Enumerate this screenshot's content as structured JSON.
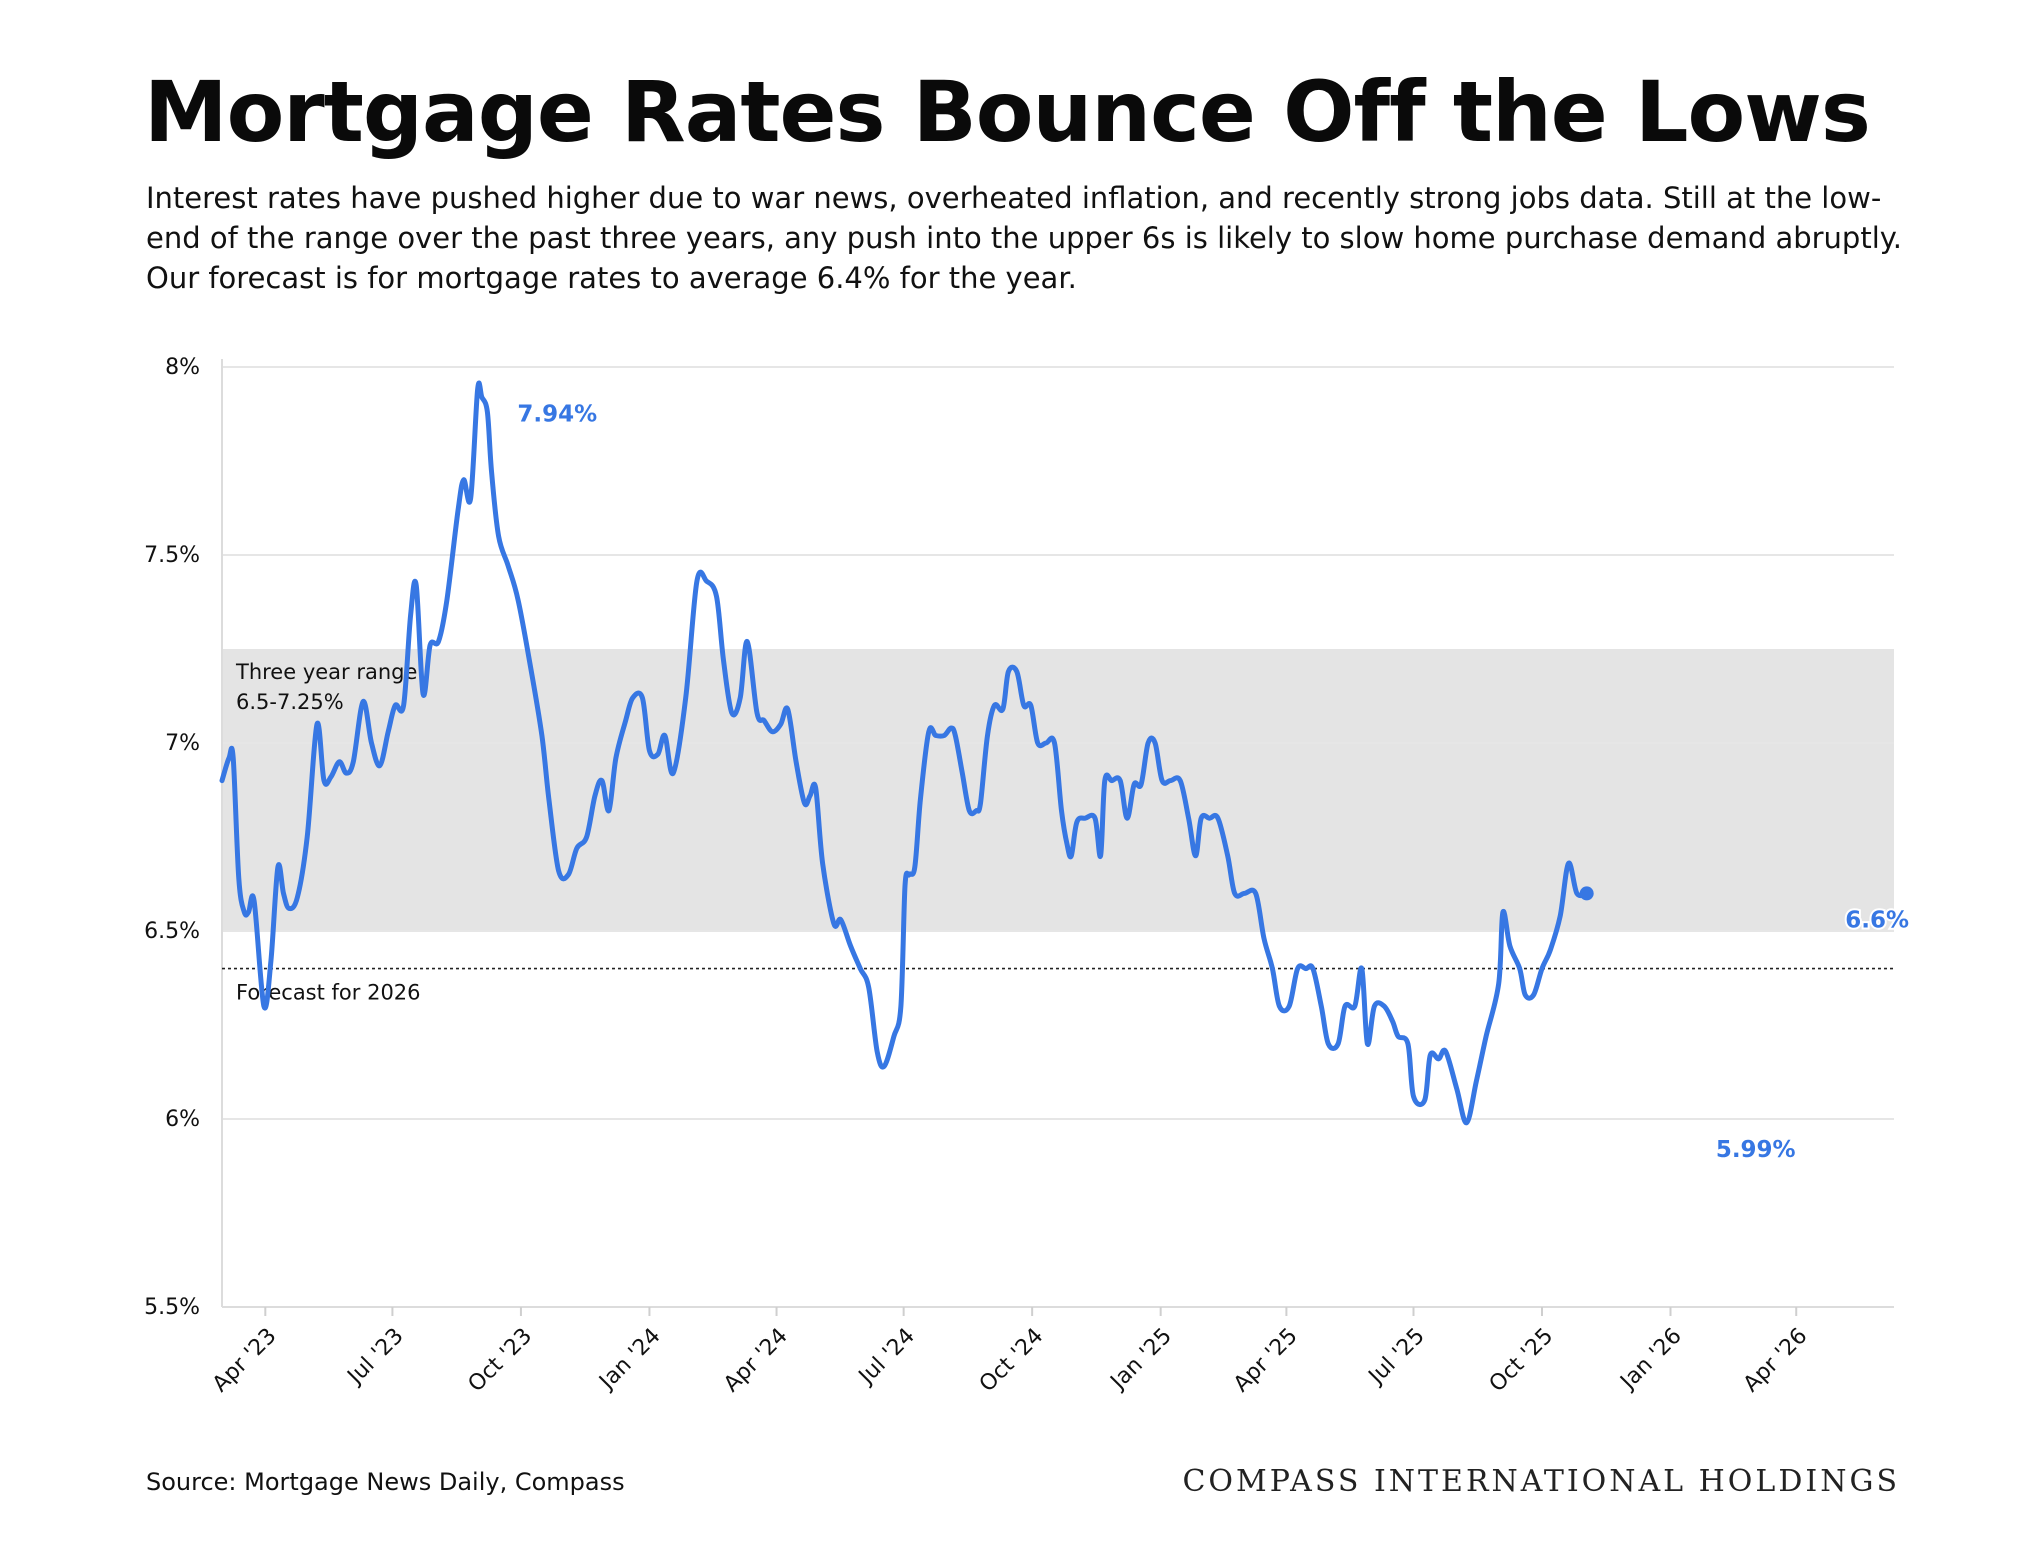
{
  "header": {
    "title": "Mortgage Rates Bounce Off the Lows",
    "subtitle": "Interest rates have pushed higher due to war news, overheated inflation, and recently strong jobs data. Still at the low-end of the range over the past three years, any push into the upper 6s is likely to slow home purchase demand abruptly. Our forecast is for mortgage rates to average 6.4% for the year."
  },
  "footer": {
    "source": "Source: Mortgage News Daily, Compass",
    "brand": "COMPASS INTERNATIONAL HOLDINGS"
  },
  "chart_data": {
    "type": "line",
    "ylim": [
      5.5,
      8.0
    ],
    "y_ticks": [
      5.5,
      6.0,
      6.5,
      7.0,
      7.5,
      8.0
    ],
    "y_tick_labels": [
      "5.5%",
      "6%",
      "6.5%",
      "7%",
      "7.5%",
      "8%"
    ],
    "x_range": [
      "2023-03-01",
      "2026-06-10"
    ],
    "x_ticks": [
      "2023-04-01",
      "2023-07-01",
      "2023-10-01",
      "2024-01-01",
      "2024-04-01",
      "2024-07-01",
      "2024-10-01",
      "2025-01-01",
      "2025-04-01",
      "2025-07-01",
      "2025-10-01",
      "2026-01-01",
      "2026-04-01"
    ],
    "x_tick_labels": [
      "Apr '23",
      "Jul '23",
      "Oct '23",
      "Jan '24",
      "Apr '24",
      "Jul '24",
      "Oct '24",
      "Jan '25",
      "Apr '25",
      "Jul '25",
      "Oct '25",
      "Jan '26",
      "Apr '26"
    ],
    "grid": true,
    "line_color": "#3777e3",
    "band": {
      "from": 6.5,
      "to": 7.25,
      "color": "#e4e4e4",
      "label_line1": "Three year range",
      "label_line2": "6.5-7.25%"
    },
    "reference_line": {
      "y": 6.4,
      "label": "Forecast for 2026"
    },
    "annotations": [
      {
        "label": "7.94%",
        "x": "2023-10-27",
        "y": 7.94
      },
      {
        "label": "5.99%",
        "x": "2026-03-03",
        "y": 5.99
      },
      {
        "label": "6.6%",
        "x": "2026-06-08",
        "y": 6.6
      }
    ],
    "series": [
      {
        "points": [
          [
            "2023-03-01",
            6.9
          ],
          [
            "2023-03-06",
            6.96
          ],
          [
            "2023-03-09",
            6.96
          ],
          [
            "2023-03-13",
            6.64
          ],
          [
            "2023-03-17",
            6.55
          ],
          [
            "2023-03-20",
            6.55
          ],
          [
            "2023-03-24",
            6.58
          ],
          [
            "2023-03-31",
            6.3
          ],
          [
            "2023-04-05",
            6.42
          ],
          [
            "2023-04-10",
            6.67
          ],
          [
            "2023-04-14",
            6.6
          ],
          [
            "2023-04-18",
            6.56
          ],
          [
            "2023-04-24",
            6.59
          ],
          [
            "2023-05-01",
            6.75
          ],
          [
            "2023-05-08",
            7.05
          ],
          [
            "2023-05-13",
            6.9
          ],
          [
            "2023-05-18",
            6.91
          ],
          [
            "2023-05-24",
            6.95
          ],
          [
            "2023-05-29",
            6.92
          ],
          [
            "2023-06-03",
            6.95
          ],
          [
            "2023-06-10",
            7.11
          ],
          [
            "2023-06-16",
            7.0
          ],
          [
            "2023-06-22",
            6.94
          ],
          [
            "2023-06-28",
            7.03
          ],
          [
            "2023-07-03",
            7.1
          ],
          [
            "2023-07-09",
            7.1
          ],
          [
            "2023-07-14",
            7.34
          ],
          [
            "2023-07-18",
            7.42
          ],
          [
            "2023-07-23",
            7.13
          ],
          [
            "2023-07-28",
            7.26
          ],
          [
            "2023-08-03",
            7.27
          ],
          [
            "2023-08-09",
            7.38
          ],
          [
            "2023-08-17",
            7.62
          ],
          [
            "2023-08-21",
            7.7
          ],
          [
            "2023-08-26",
            7.65
          ],
          [
            "2023-08-31",
            7.94
          ],
          [
            "2023-09-03",
            7.92
          ],
          [
            "2023-09-07",
            7.88
          ],
          [
            "2023-09-10",
            7.72
          ],
          [
            "2023-09-15",
            7.55
          ],
          [
            "2023-09-22",
            7.47
          ],
          [
            "2023-09-29",
            7.38
          ],
          [
            "2023-10-08",
            7.2
          ],
          [
            "2023-10-16",
            7.02
          ],
          [
            "2023-10-21",
            6.85
          ],
          [
            "2023-10-28",
            6.66
          ],
          [
            "2023-11-04",
            6.65
          ],
          [
            "2023-11-10",
            6.72
          ],
          [
            "2023-11-17",
            6.75
          ],
          [
            "2023-11-23",
            6.86
          ],
          [
            "2023-11-28",
            6.9
          ],
          [
            "2023-12-03",
            6.82
          ],
          [
            "2023-12-08",
            6.96
          ],
          [
            "2023-12-15",
            7.06
          ],
          [
            "2023-12-20",
            7.12
          ],
          [
            "2023-12-27",
            7.12
          ],
          [
            "2024-01-01",
            6.98
          ],
          [
            "2024-01-07",
            6.97
          ],
          [
            "2024-01-12",
            7.02
          ],
          [
            "2024-01-18",
            6.92
          ],
          [
            "2024-01-27",
            7.12
          ],
          [
            "2024-02-04",
            7.43
          ],
          [
            "2024-02-11",
            7.43
          ],
          [
            "2024-02-18",
            7.39
          ],
          [
            "2024-02-23",
            7.22
          ],
          [
            "2024-02-29",
            7.08
          ],
          [
            "2024-03-06",
            7.12
          ],
          [
            "2024-03-11",
            7.27
          ],
          [
            "2024-03-18",
            7.08
          ],
          [
            "2024-03-23",
            7.06
          ],
          [
            "2024-03-29",
            7.03
          ],
          [
            "2024-04-04",
            7.05
          ],
          [
            "2024-04-09",
            7.09
          ],
          [
            "2024-04-15",
            6.95
          ],
          [
            "2024-04-21",
            6.84
          ],
          [
            "2024-04-25",
            6.86
          ],
          [
            "2024-04-29",
            6.88
          ],
          [
            "2024-05-04",
            6.68
          ],
          [
            "2024-05-12",
            6.52
          ],
          [
            "2024-05-17",
            6.53
          ],
          [
            "2024-05-24",
            6.46
          ],
          [
            "2024-05-31",
            6.4
          ],
          [
            "2024-06-06",
            6.35
          ],
          [
            "2024-06-12",
            6.18
          ],
          [
            "2024-06-17",
            6.14
          ],
          [
            "2024-06-24",
            6.22
          ],
          [
            "2024-06-29",
            6.3
          ],
          [
            "2024-07-02",
            6.62
          ],
          [
            "2024-07-05",
            6.65
          ],
          [
            "2024-07-09",
            6.67
          ],
          [
            "2024-07-13",
            6.85
          ],
          [
            "2024-07-19",
            7.03
          ],
          [
            "2024-07-24",
            7.02
          ],
          [
            "2024-07-30",
            7.02
          ],
          [
            "2024-08-04",
            7.04
          ],
          [
            "2024-08-07",
            7.02
          ],
          [
            "2024-08-12",
            6.92
          ],
          [
            "2024-08-17",
            6.82
          ],
          [
            "2024-08-22",
            6.82
          ],
          [
            "2024-08-25",
            6.84
          ],
          [
            "2024-08-30",
            7.02
          ],
          [
            "2024-09-04",
            7.1
          ],
          [
            "2024-09-10",
            7.09
          ],
          [
            "2024-09-14",
            7.19
          ],
          [
            "2024-09-20",
            7.19
          ],
          [
            "2024-09-25",
            7.1
          ],
          [
            "2024-09-30",
            7.1
          ],
          [
            "2024-10-05",
            7.0
          ],
          [
            "2024-10-11",
            7.0
          ],
          [
            "2024-10-17",
            7.0
          ],
          [
            "2024-10-22",
            6.82
          ],
          [
            "2024-10-26",
            6.73
          ],
          [
            "2024-10-29",
            6.7
          ],
          [
            "2024-11-02",
            6.79
          ],
          [
            "2024-11-08",
            6.8
          ],
          [
            "2024-11-15",
            6.8
          ],
          [
            "2024-11-19",
            6.7
          ],
          [
            "2024-11-22",
            6.9
          ],
          [
            "2024-11-27",
            6.9
          ],
          [
            "2024-12-03",
            6.9
          ],
          [
            "2024-12-08",
            6.8
          ],
          [
            "2024-12-13",
            6.89
          ],
          [
            "2024-12-18",
            6.89
          ],
          [
            "2024-12-23",
            7.0
          ],
          [
            "2024-12-28",
            7.0
          ],
          [
            "2025-01-02",
            6.9
          ],
          [
            "2025-01-08",
            6.9
          ],
          [
            "2025-01-15",
            6.9
          ],
          [
            "2025-01-21",
            6.8
          ],
          [
            "2025-01-26",
            6.7
          ],
          [
            "2025-01-30",
            6.8
          ],
          [
            "2025-02-05",
            6.8
          ],
          [
            "2025-02-11",
            6.8
          ],
          [
            "2025-02-18",
            6.7
          ],
          [
            "2025-02-23",
            6.6
          ],
          [
            "2025-03-02",
            6.6
          ],
          [
            "2025-03-10",
            6.6
          ],
          [
            "2025-03-16",
            6.48
          ],
          [
            "2025-03-22",
            6.4
          ],
          [
            "2025-03-27",
            6.3
          ],
          [
            "2025-04-03",
            6.3
          ],
          [
            "2025-04-09",
            6.4
          ],
          [
            "2025-04-15",
            6.4
          ],
          [
            "2025-04-20",
            6.4
          ],
          [
            "2025-04-26",
            6.3
          ],
          [
            "2025-05-01",
            6.2
          ],
          [
            "2025-05-08",
            6.2
          ],
          [
            "2025-05-13",
            6.3
          ],
          [
            "2025-05-20",
            6.3
          ],
          [
            "2025-05-25",
            6.4
          ],
          [
            "2025-05-29",
            6.2
          ],
          [
            "2025-06-03",
            6.3
          ],
          [
            "2025-06-10",
            6.3
          ],
          [
            "2025-06-16",
            6.26
          ],
          [
            "2025-06-20",
            6.22
          ],
          [
            "2025-06-27",
            6.2
          ],
          [
            "2025-07-01",
            6.06
          ],
          [
            "2025-07-09",
            6.05
          ],
          [
            "2025-07-13",
            6.17
          ],
          [
            "2025-07-19",
            6.16
          ],
          [
            "2025-07-24",
            6.18
          ],
          [
            "2025-08-01",
            6.08
          ],
          [
            "2025-08-08",
            5.99
          ],
          [
            "2025-08-15",
            6.1
          ],
          [
            "2025-08-22",
            6.22
          ],
          [
            "2025-08-31",
            6.36
          ],
          [
            "2025-09-03",
            6.55
          ],
          [
            "2025-09-08",
            6.46
          ],
          [
            "2025-09-15",
            6.4
          ],
          [
            "2025-09-19",
            6.33
          ],
          [
            "2025-09-25",
            6.33
          ],
          [
            "2025-10-01",
            6.4
          ],
          [
            "2025-10-07",
            6.45
          ],
          [
            "2025-10-14",
            6.54
          ],
          [
            "2025-10-20",
            6.68
          ],
          [
            "2025-10-26",
            6.6
          ],
          [
            "2025-11-02",
            6.6
          ]
        ]
      }
    ]
  }
}
